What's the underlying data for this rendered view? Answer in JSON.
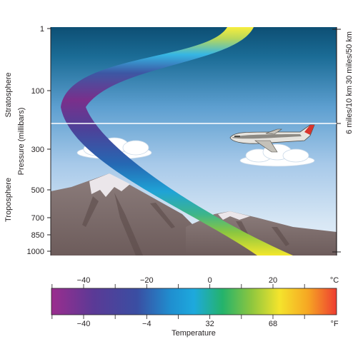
{
  "left_axis": {
    "title": "Pressure (millibars)",
    "ticks": [
      {
        "label": "1",
        "value": 1
      },
      {
        "label": "100",
        "value": 100
      },
      {
        "label": "300",
        "value": 300
      },
      {
        "label": "500",
        "value": 500
      },
      {
        "label": "700",
        "value": 700
      },
      {
        "label": "850",
        "value": 850
      },
      {
        "label": "1000",
        "value": 1000
      }
    ]
  },
  "layers": {
    "stratosphere": "Stratosphere",
    "troposphere": "Troposphere"
  },
  "right_axis": {
    "top": "30 miles/50 km",
    "middle": "6 miles/10 km"
  },
  "scale": {
    "title": "Temperature",
    "celsius": {
      "unit": "°C",
      "ticks": [
        {
          "label": "−40",
          "value": -40
        },
        {
          "label": "−20",
          "value": -20
        },
        {
          "label": "0",
          "value": 0
        },
        {
          "label": "20",
          "value": 20
        }
      ]
    },
    "fahrenheit": {
      "unit": "°F",
      "ticks": [
        {
          "label": "−40",
          "value": -40
        },
        {
          "label": "−4",
          "value": -4
        },
        {
          "label": "32",
          "value": 32
        },
        {
          "label": "68",
          "value": 68
        }
      ]
    },
    "colors": [
      "#7b2a86",
      "#4a3f9a",
      "#2a5fb0",
      "#1ea6dd",
      "#22b573",
      "#8cc63f",
      "#f7e92b",
      "#f6a623",
      "#ee3d32"
    ]
  },
  "icons": {
    "airplane": "airplane-icon",
    "mountain_left": "mountain-icon",
    "mountain_right": "mountain-icon",
    "clouds": "cloud-icon"
  }
}
